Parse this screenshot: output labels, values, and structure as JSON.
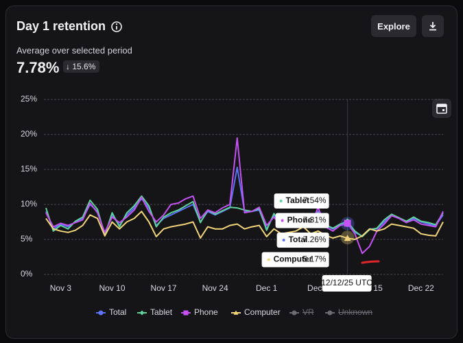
{
  "header": {
    "title": "Day 1 retention",
    "subtitle": "Average over selected period",
    "average": "7.78%",
    "change": "15.6%",
    "explore": "Explore"
  },
  "chart_data": {
    "type": "line",
    "categories": [
      null,
      null,
      "Nov 3",
      null,
      null,
      null,
      null,
      null,
      null,
      "Nov 10",
      null,
      null,
      null,
      null,
      null,
      null,
      "Nov 17",
      null,
      null,
      null,
      null,
      null,
      null,
      "Nov 24",
      null,
      null,
      null,
      null,
      null,
      null,
      "Dec 1",
      null,
      null,
      null,
      null,
      null,
      null,
      "Dec 8",
      null,
      null,
      null,
      null,
      null,
      null,
      "Dec 15",
      null,
      null,
      null,
      null,
      null,
      null,
      "Dec 22",
      null,
      null,
      null
    ],
    "ylim": [
      0,
      25
    ],
    "yticks": [
      {
        "value": 0,
        "label": "0%"
      },
      {
        "value": 5,
        "label": "5%"
      },
      {
        "value": 10,
        "label": "10%"
      },
      {
        "value": 15,
        "label": "15%"
      },
      {
        "value": 20,
        "label": "20%"
      },
      {
        "value": 25,
        "label": "25%"
      }
    ],
    "grid": true,
    "tooltip_date": "12/12/25 UTC",
    "series": [
      {
        "name": "Total",
        "color": "#5b74f5",
        "marker": "circle",
        "values": [
          9,
          6.5,
          7.2,
          6.8,
          7.5,
          8,
          10,
          9,
          5.8,
          8.5,
          7,
          8.5,
          9.5,
          10.8,
          9.5,
          7,
          8,
          8.5,
          9,
          9.5,
          10,
          7.5,
          9,
          8.5,
          9,
          9.5,
          15.3,
          9,
          9,
          9.2,
          6.5,
          8.5,
          7,
          7.5,
          7.5,
          8.5,
          7,
          9,
          7,
          6.5,
          7,
          7.26,
          6,
          5.5,
          6.5,
          6.5,
          7.5,
          8.5,
          8,
          7.5,
          8,
          7.5,
          7.2,
          7,
          8.5
        ],
        "value_labels": [
          null,
          null,
          null,
          null,
          null,
          null,
          null,
          null,
          null,
          null,
          null,
          null,
          null,
          null,
          null,
          null,
          null,
          null,
          null,
          null,
          null,
          null,
          null,
          null,
          null,
          null,
          null,
          null,
          null,
          null,
          null,
          null,
          null,
          null,
          null,
          null,
          null,
          null,
          null,
          null,
          null,
          "7.26%",
          null,
          null,
          null,
          null,
          null,
          null,
          null,
          null,
          null,
          null,
          null,
          null,
          null
        ]
      },
      {
        "name": "Tablet",
        "color": "#5fd39a",
        "marker": "diamond",
        "values": [
          9.5,
          6.2,
          7,
          6.5,
          7.6,
          8.2,
          10.6,
          9.3,
          5.6,
          8.8,
          6.8,
          8.8,
          9.8,
          11.2,
          9.8,
          6.8,
          8.2,
          8.8,
          9.2,
          9.8,
          10.4,
          7.4,
          9.2,
          8.6,
          9.1,
          9.6,
          9.5,
          9.2,
          9,
          9.4,
          6.3,
          8.7,
          7.2,
          7.8,
          7.6,
          8.7,
          7.2,
          8.8,
          7.1,
          6.6,
          7.2,
          7.54,
          6.2,
          5.4,
          6.4,
          6.6,
          7.8,
          8.6,
          8.1,
          7.6,
          8.2,
          7.6,
          7.4,
          7.1,
          8.8
        ],
        "value_labels": [
          null,
          null,
          null,
          null,
          null,
          null,
          null,
          null,
          null,
          null,
          null,
          null,
          null,
          null,
          null,
          null,
          null,
          null,
          null,
          null,
          null,
          null,
          null,
          null,
          null,
          null,
          null,
          null,
          null,
          null,
          null,
          null,
          null,
          null,
          null,
          null,
          null,
          null,
          null,
          null,
          null,
          "7.54%",
          null,
          null,
          null,
          null,
          null,
          null,
          null,
          null,
          null,
          null,
          null,
          null,
          null
        ]
      },
      {
        "name": "Phone",
        "color": "#c552f2",
        "marker": "square",
        "values": [
          8.8,
          6.8,
          7.3,
          7,
          7.4,
          7.8,
          10.2,
          8.8,
          6,
          8.2,
          7.4,
          8.2,
          9.2,
          11,
          9,
          7.5,
          8.5,
          10,
          10.2,
          10.8,
          11.2,
          8,
          9.2,
          8.8,
          9.5,
          10,
          19.5,
          8.8,
          9,
          9.6,
          7,
          8.2,
          6.8,
          7.4,
          7.8,
          8.4,
          6.8,
          9.6,
          6.8,
          6.2,
          7,
          7.31,
          5.8,
          3,
          4,
          6.2,
          7.2,
          8.4,
          8,
          7.4,
          7.8,
          7.2,
          7,
          6.8,
          9
        ],
        "value_labels": [
          null,
          null,
          null,
          null,
          null,
          null,
          null,
          null,
          null,
          null,
          null,
          null,
          null,
          null,
          null,
          null,
          null,
          null,
          null,
          null,
          null,
          null,
          null,
          null,
          null,
          null,
          null,
          null,
          null,
          null,
          null,
          null,
          null,
          null,
          null,
          null,
          null,
          null,
          null,
          null,
          null,
          "7.31%",
          null,
          null,
          null,
          null,
          null,
          null,
          null,
          null,
          null,
          null,
          null,
          null,
          null
        ]
      },
      {
        "name": "Computer",
        "color": "#f4d67a",
        "marker": "triangle",
        "values": [
          8,
          6.5,
          6.2,
          6,
          6.3,
          7,
          8.5,
          8,
          5.5,
          7.5,
          6.5,
          7.5,
          8,
          9,
          7.5,
          5.4,
          6.5,
          6.8,
          7,
          7.2,
          7.5,
          5.2,
          6.8,
          6.5,
          6.5,
          7,
          7.2,
          6.5,
          6.8,
          7,
          5.4,
          6.5,
          5.8,
          6,
          6.2,
          6.8,
          5.8,
          6.2,
          5.6,
          5.2,
          5.5,
          5.17,
          5,
          5.5,
          6.5,
          6.2,
          6.5,
          7.2,
          7,
          6.8,
          6.6,
          5.8,
          5.6,
          5.5,
          7.5
        ],
        "value_labels": [
          null,
          null,
          null,
          null,
          null,
          null,
          null,
          null,
          null,
          null,
          null,
          null,
          null,
          null,
          null,
          null,
          null,
          null,
          null,
          null,
          null,
          null,
          null,
          null,
          null,
          null,
          null,
          null,
          null,
          null,
          null,
          null,
          null,
          null,
          null,
          null,
          null,
          null,
          null,
          null,
          null,
          "5.17%",
          null,
          null,
          null,
          null,
          null,
          null,
          null,
          null,
          null,
          null,
          null,
          null,
          null
        ]
      }
    ],
    "hidden_series": [
      {
        "name": "VR"
      },
      {
        "name": "Unknown"
      }
    ]
  }
}
